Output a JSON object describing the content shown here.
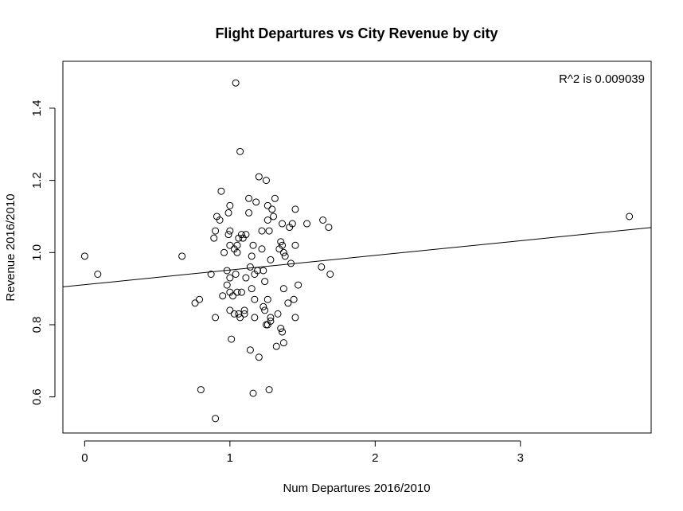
{
  "chart_data": {
    "type": "scatter",
    "title": "Flight Departures vs City Revenue by city",
    "xlabel": "Num Departures 2016/2010",
    "ylabel": "Revenue 2016/2010",
    "xlim": [
      -0.15,
      3.9
    ],
    "ylim": [
      0.5,
      1.53
    ],
    "x_ticks": [
      0,
      1,
      2,
      3
    ],
    "x_tick_labels": [
      "0",
      "1",
      "2",
      "3"
    ],
    "y_ticks": [
      0.6,
      0.8,
      1.0,
      1.2,
      1.4
    ],
    "y_tick_labels": [
      "0.6",
      "0.8",
      "1.0",
      "1.2",
      "1.4"
    ],
    "annotation": "R^2 is 0.009039",
    "regression_line": {
      "intercept": 0.911,
      "slope": 0.0406
    },
    "grid": false,
    "points": [
      [
        0.0,
        0.99
      ],
      [
        0.09,
        0.94
      ],
      [
        0.67,
        0.99
      ],
      [
        0.76,
        0.86
      ],
      [
        0.79,
        0.87
      ],
      [
        0.8,
        0.62
      ],
      [
        0.87,
        0.94
      ],
      [
        0.89,
        1.04
      ],
      [
        0.9,
        1.06
      ],
      [
        0.91,
        1.1
      ],
      [
        0.9,
        0.82
      ],
      [
        0.9,
        0.54
      ],
      [
        0.93,
        1.09
      ],
      [
        0.94,
        1.17
      ],
      [
        0.95,
        0.88
      ],
      [
        0.96,
        1.0
      ],
      [
        0.98,
        0.91
      ],
      [
        0.98,
        0.95
      ],
      [
        0.99,
        1.05
      ],
      [
        0.99,
        1.11
      ],
      [
        1.0,
        1.13
      ],
      [
        1.0,
        1.06
      ],
      [
        1.0,
        1.02
      ],
      [
        1.0,
        0.93
      ],
      [
        1.0,
        0.89
      ],
      [
        1.0,
        0.84
      ],
      [
        1.01,
        0.76
      ],
      [
        1.02,
        0.88
      ],
      [
        1.03,
        0.83
      ],
      [
        1.03,
        1.01
      ],
      [
        1.04,
        0.94
      ],
      [
        1.04,
        1.47
      ],
      [
        1.05,
        1.0
      ],
      [
        1.05,
        1.02
      ],
      [
        1.05,
        0.89
      ],
      [
        1.06,
        1.04
      ],
      [
        1.06,
        0.83
      ],
      [
        1.07,
        0.82
      ],
      [
        1.07,
        1.28
      ],
      [
        1.08,
        1.05
      ],
      [
        1.08,
        0.89
      ],
      [
        1.09,
        1.04
      ],
      [
        1.1,
        0.84
      ],
      [
        1.1,
        0.83
      ],
      [
        1.11,
        0.93
      ],
      [
        1.11,
        1.05
      ],
      [
        1.13,
        1.11
      ],
      [
        1.13,
        1.15
      ],
      [
        1.14,
        0.96
      ],
      [
        1.14,
        0.73
      ],
      [
        1.15,
        0.9
      ],
      [
        1.15,
        0.99
      ],
      [
        1.16,
        1.02
      ],
      [
        1.16,
        0.61
      ],
      [
        1.17,
        0.87
      ],
      [
        1.17,
        0.82
      ],
      [
        1.17,
        0.94
      ],
      [
        1.18,
        1.14
      ],
      [
        1.19,
        0.95
      ],
      [
        1.2,
        0.71
      ],
      [
        1.2,
        1.21
      ],
      [
        1.22,
        1.06
      ],
      [
        1.22,
        1.01
      ],
      [
        1.23,
        0.95
      ],
      [
        1.23,
        0.85
      ],
      [
        1.24,
        0.84
      ],
      [
        1.24,
        0.92
      ],
      [
        1.25,
        0.8
      ],
      [
        1.25,
        1.2
      ],
      [
        1.26,
        0.8
      ],
      [
        1.26,
        0.87
      ],
      [
        1.26,
        1.13
      ],
      [
        1.26,
        1.09
      ],
      [
        1.27,
        1.06
      ],
      [
        1.27,
        0.62
      ],
      [
        1.28,
        0.81
      ],
      [
        1.28,
        0.82
      ],
      [
        1.28,
        0.98
      ],
      [
        1.29,
        1.12
      ],
      [
        1.3,
        1.1
      ],
      [
        1.31,
        1.15
      ],
      [
        1.32,
        0.74
      ],
      [
        1.33,
        0.83
      ],
      [
        1.34,
        1.01
      ],
      [
        1.35,
        0.79
      ],
      [
        1.35,
        1.03
      ],
      [
        1.36,
        0.78
      ],
      [
        1.36,
        1.02
      ],
      [
        1.36,
        1.08
      ],
      [
        1.37,
        0.9
      ],
      [
        1.37,
        1.0
      ],
      [
        1.37,
        0.75
      ],
      [
        1.38,
        0.99
      ],
      [
        1.4,
        0.86
      ],
      [
        1.41,
        1.07
      ],
      [
        1.42,
        0.97
      ],
      [
        1.43,
        1.08
      ],
      [
        1.44,
        0.87
      ],
      [
        1.45,
        0.82
      ],
      [
        1.45,
        1.12
      ],
      [
        1.45,
        1.02
      ],
      [
        1.47,
        0.91
      ],
      [
        1.53,
        1.08
      ],
      [
        1.63,
        0.96
      ],
      [
        1.64,
        1.09
      ],
      [
        1.68,
        1.07
      ],
      [
        1.69,
        0.94
      ],
      [
        3.75,
        1.1
      ]
    ]
  }
}
